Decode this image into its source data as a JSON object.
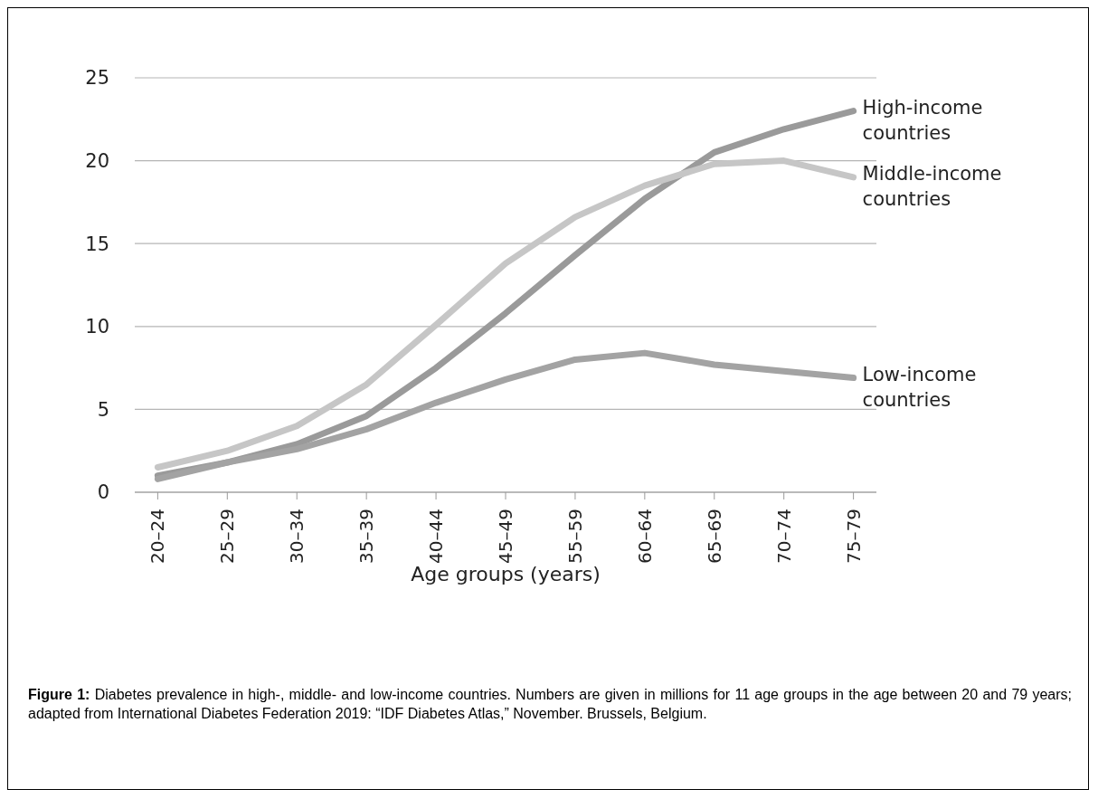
{
  "chart_data": {
    "type": "line",
    "xlabel": "Age groups (years)",
    "categories": [
      "20–24",
      "25–29",
      "30–34",
      "35–39",
      "40–44",
      "45–49",
      "55–59",
      "60–64",
      "65–69",
      "70–74",
      "75–79"
    ],
    "series": [
      {
        "name": "High-income countries",
        "color": "#9a9a9a",
        "values": [
          1.0,
          1.8,
          2.9,
          4.6,
          7.5,
          10.8,
          14.3,
          17.7,
          20.5,
          21.9,
          23.0
        ]
      },
      {
        "name": "Middle-income countries",
        "color": "#c6c6c6",
        "values": [
          1.5,
          2.5,
          4.0,
          6.5,
          10.1,
          13.8,
          16.6,
          18.5,
          19.8,
          20.0,
          19.0
        ]
      },
      {
        "name": "Low-income countries",
        "color": "#a3a3a3",
        "values": [
          0.8,
          1.8,
          2.6,
          3.8,
          5.4,
          6.8,
          8.0,
          8.4,
          7.7,
          7.3,
          6.9
        ]
      }
    ],
    "ylim": [
      0,
      25
    ],
    "yticks": [
      0,
      5,
      10,
      15,
      20,
      25
    ],
    "grid": "y",
    "legend": false,
    "marker": "none",
    "line_style": "solid",
    "annotations": [
      "Figure 1: Diabetes prevalence in high-, middle- and low-income countries. Numbers are given in millions for 11 age groups in the age between 20 and 79 years; adapted from International Diabetes Federation 2019: “IDF Diabetes Atlas,” November. Brussels, Belgium."
    ]
  }
}
